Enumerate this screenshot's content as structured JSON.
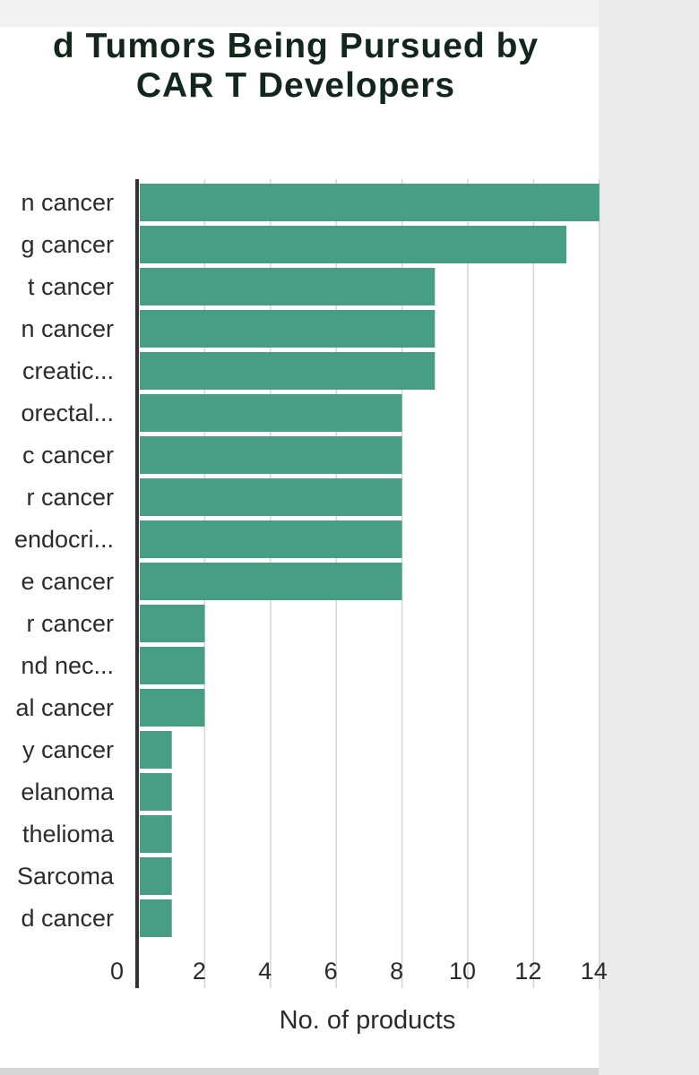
{
  "chart_data": {
    "type": "bar",
    "orientation": "horizontal",
    "title": "d Tumors Being Pursued by CAR T Developers",
    "title_lines": [
      "d Tumors Being Pursued by",
      "CAR T Developers"
    ],
    "xlabel": "No. of products",
    "ylabel": "",
    "categories": [
      "n cancer",
      "g cancer",
      "t cancer",
      "n cancer",
      "creatic...",
      "orectal...",
      "c cancer",
      "r cancer",
      "endocri...",
      "e cancer",
      "r cancer",
      "nd nec...",
      "al cancer",
      "y cancer",
      "elanoma",
      "thelioma",
      "Sarcoma",
      "d cancer"
    ],
    "values": [
      14,
      13,
      9,
      9,
      9,
      8,
      8,
      8,
      8,
      8,
      2,
      2,
      2,
      1,
      1,
      1,
      1,
      1
    ],
    "xticks": [
      0,
      2,
      4,
      6,
      8,
      10,
      12,
      14
    ],
    "xlim": [
      0,
      14
    ],
    "grid": true,
    "legend": "none",
    "colors": {
      "bar": "#479e85",
      "axis": "#333333",
      "grid": "#d5d5d5",
      "text": "#2b2b2b",
      "title": "#13261d"
    }
  }
}
